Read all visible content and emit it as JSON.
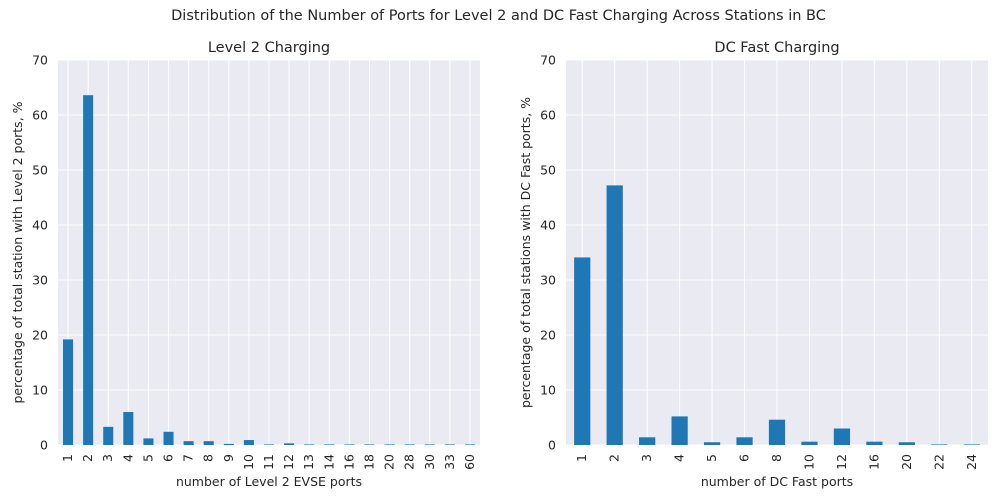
{
  "title": "Distribution of the Number of Ports for Level 2 and DC Fast Charging Across Stations in BC",
  "chart_data": [
    {
      "type": "bar",
      "title": "Level 2 Charging",
      "xlabel": "number of Level 2 EVSE ports",
      "ylabel": "percentage of total station with Level 2 ports, %",
      "categories": [
        "1",
        "2",
        "3",
        "4",
        "5",
        "6",
        "7",
        "8",
        "9",
        "10",
        "11",
        "12",
        "13",
        "14",
        "16",
        "18",
        "20",
        "28",
        "30",
        "33",
        "60"
      ],
      "values": [
        19.2,
        63.6,
        3.3,
        6.0,
        1.2,
        2.4,
        0.7,
        0.7,
        0.2,
        0.9,
        0.1,
        0.3,
        0.1,
        0.1,
        0.1,
        0.1,
        0.1,
        0.1,
        0.1,
        0.1,
        0.1
      ],
      "ylim": [
        0,
        70
      ],
      "yticks": [
        "0",
        "10",
        "20",
        "30",
        "40",
        "50",
        "60",
        "70"
      ],
      "grid": true
    },
    {
      "type": "bar",
      "title": "DC Fast Charging",
      "xlabel": "number of DC Fast ports",
      "ylabel": "percentage of total stations with DC Fast ports, %",
      "categories": [
        "1",
        "2",
        "3",
        "4",
        "5",
        "6",
        "8",
        "10",
        "12",
        "16",
        "20",
        "22",
        "24"
      ],
      "values": [
        34.1,
        47.2,
        1.4,
        5.2,
        0.5,
        1.4,
        4.6,
        0.6,
        3.0,
        0.6,
        0.5,
        0.1,
        0.1
      ],
      "ylim": [
        0,
        70
      ],
      "yticks": [
        "0",
        "10",
        "20",
        "30",
        "40",
        "50",
        "60",
        "70"
      ],
      "grid": true
    }
  ]
}
